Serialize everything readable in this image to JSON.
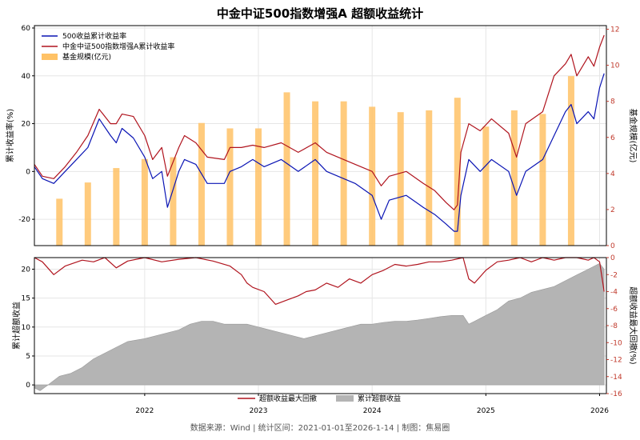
{
  "title": "中金中证500指数增强A 超额收益统计",
  "footer": "数据来源：Wind | 统计区间：2021-01-01至2026-1-14 | 制图：焦易圈",
  "colors": {
    "index_line": "#0a14b4",
    "fund_line": "#b0141e",
    "aum_bar": "#ffc266",
    "drawdown_line": "#b0141e",
    "excess_area": "#b4b4b4",
    "grid": "#e6e6e6",
    "right_axis": "#c0392b"
  },
  "chart_data": [
    {
      "type": "line",
      "ylabel": "累计收益率(%)",
      "y2label": "基金规模(亿元)",
      "ylim": [
        -31,
        61
      ],
      "y2lim": [
        0,
        12.2
      ],
      "yticks": [
        -20,
        0,
        20,
        40,
        60
      ],
      "y2ticks": [
        0,
        2,
        4,
        6,
        8,
        10,
        12
      ],
      "xlim": [
        2021.03,
        2026.06
      ],
      "legend_position": "top-left",
      "grid": true,
      "series": [
        {
          "name": "500收益累计收益率",
          "x": [
            2021.03,
            2021.1,
            2021.2,
            2021.3,
            2021.4,
            2021.5,
            2021.6,
            2021.7,
            2021.75,
            2021.8,
            2021.9,
            2022.0,
            2022.07,
            2022.15,
            2022.2,
            2022.3,
            2022.35,
            2022.45,
            2022.55,
            2022.7,
            2022.75,
            2022.85,
            2022.95,
            2023.05,
            2023.2,
            2023.35,
            2023.5,
            2023.6,
            2023.75,
            2023.85,
            2024.0,
            2024.08,
            2024.15,
            2024.3,
            2024.45,
            2024.55,
            2024.65,
            2024.72,
            2024.75,
            2024.78,
            2024.85,
            2024.95,
            2025.05,
            2025.2,
            2025.27,
            2025.35,
            2025.5,
            2025.6,
            2025.7,
            2025.75,
            2025.8,
            2025.9,
            2025.95,
            2026.0,
            2026.04
          ],
          "y": [
            2,
            -3,
            -5,
            0,
            5,
            10,
            22,
            15,
            12,
            18,
            14,
            6,
            -3,
            0,
            -15,
            0,
            5,
            3,
            -5,
            -5,
            0,
            2,
            5,
            2,
            5,
            0,
            5,
            0,
            -3,
            -5,
            -10,
            -20,
            -12,
            -10,
            -15,
            -18,
            -22,
            -25,
            -25,
            -10,
            5,
            0,
            5,
            0,
            -10,
            0,
            5,
            15,
            25,
            28,
            20,
            25,
            22,
            35,
            41
          ]
        },
        {
          "name": "中金中证500指数增强A累计收益率",
          "x": [
            2021.03,
            2021.1,
            2021.2,
            2021.3,
            2021.4,
            2021.5,
            2021.6,
            2021.7,
            2021.75,
            2021.8,
            2021.9,
            2022.0,
            2022.07,
            2022.15,
            2022.2,
            2022.3,
            2022.35,
            2022.45,
            2022.55,
            2022.7,
            2022.75,
            2022.85,
            2022.95,
            2023.05,
            2023.2,
            2023.35,
            2023.5,
            2023.6,
            2023.75,
            2023.85,
            2024.0,
            2024.08,
            2024.15,
            2024.3,
            2024.45,
            2024.55,
            2024.65,
            2024.72,
            2024.75,
            2024.78,
            2024.85,
            2024.95,
            2025.05,
            2025.2,
            2025.27,
            2025.35,
            2025.5,
            2025.6,
            2025.7,
            2025.75,
            2025.8,
            2025.9,
            2025.95,
            2026.0,
            2026.04
          ],
          "y": [
            3,
            -2,
            -3,
            2,
            8,
            15,
            26,
            20,
            20,
            24,
            23,
            15,
            5,
            10,
            -2,
            10,
            15,
            12,
            6,
            5,
            10,
            10,
            11,
            10,
            12,
            8,
            12,
            8,
            5,
            3,
            0,
            -6,
            -2,
            0,
            -5,
            -8,
            -13,
            -16,
            -14,
            8,
            20,
            17,
            22,
            16,
            6,
            20,
            25,
            40,
            45,
            49,
            40,
            48,
            44,
            52,
            57
          ]
        },
        {
          "name": "基金规模(亿元)",
          "type": "bar",
          "axis": "right",
          "x": [
            2021.25,
            2021.5,
            2021.75,
            2022.0,
            2022.25,
            2022.5,
            2022.75,
            2023.0,
            2023.25,
            2023.5,
            2023.75,
            2024.0,
            2024.25,
            2024.5,
            2024.75,
            2025.0,
            2025.25,
            2025.5,
            2025.75
          ],
          "y": [
            2.6,
            3.5,
            4.3,
            4.8,
            4.9,
            6.8,
            6.5,
            6.5,
            8.5,
            8.0,
            8.0,
            7.7,
            7.4,
            7.5,
            8.2,
            6.6,
            7.5,
            7.3,
            9.4
          ]
        }
      ]
    },
    {
      "type": "area",
      "ylabel": "累计超额收益",
      "y2label": "超额收益最大回撤(%)",
      "ylim": [
        -1.5,
        22
      ],
      "y2lim": [
        -16,
        0
      ],
      "yticks": [
        0,
        5,
        10,
        15,
        20
      ],
      "y2ticks": [
        0,
        -2,
        -4,
        -6,
        -8,
        -10,
        -12,
        -14,
        -16
      ],
      "xlim": [
        2021.03,
        2026.06
      ],
      "xticks": [
        2022,
        2023,
        2024,
        2025,
        2026
      ],
      "legend_position": "bottom-center",
      "grid": true,
      "series": [
        {
          "name": "超额收益最大回撤",
          "axis": "right",
          "x": [
            2021.03,
            2021.1,
            2021.2,
            2021.3,
            2021.45,
            2021.55,
            2021.65,
            2021.75,
            2021.85,
            2022.0,
            2022.15,
            2022.3,
            2022.45,
            2022.6,
            2022.75,
            2022.85,
            2022.9,
            2022.95,
            2023.05,
            2023.15,
            2023.25,
            2023.35,
            2023.42,
            2023.5,
            2023.6,
            2023.7,
            2023.8,
            2023.9,
            2024.0,
            2024.1,
            2024.2,
            2024.3,
            2024.4,
            2024.5,
            2024.6,
            2024.7,
            2024.8,
            2024.85,
            2024.9,
            2025.0,
            2025.1,
            2025.2,
            2025.3,
            2025.4,
            2025.5,
            2025.6,
            2025.7,
            2025.8,
            2025.9,
            2025.95,
            2026.0,
            2026.04
          ],
          "y": [
            0,
            -0.5,
            -2,
            -1,
            -0.3,
            -0.5,
            0,
            -1.2,
            -0.4,
            0,
            -0.5,
            -0.2,
            0,
            -0.4,
            -1,
            -2,
            -3,
            -3.5,
            -4,
            -5.5,
            -5,
            -4.5,
            -4,
            -3.8,
            -3,
            -3.5,
            -2.5,
            -3,
            -2,
            -1.5,
            -0.8,
            -1,
            -0.8,
            -0.5,
            -0.5,
            -0.3,
            0,
            -2.5,
            -3,
            -1.5,
            -0.5,
            -0.3,
            0,
            -0.5,
            0,
            -0.3,
            0,
            0,
            -0.3,
            0,
            -0.5,
            -4
          ]
        },
        {
          "name": "累计超额收益",
          "x": [
            2021.03,
            2021.08,
            2021.15,
            2021.25,
            2021.35,
            2021.45,
            2021.55,
            2021.65,
            2021.75,
            2021.85,
            2022.0,
            2022.1,
            2022.2,
            2022.3,
            2022.4,
            2022.5,
            2022.6,
            2022.7,
            2022.8,
            2022.9,
            2023.0,
            2023.1,
            2023.2,
            2023.3,
            2023.4,
            2023.5,
            2023.6,
            2023.7,
            2023.8,
            2023.9,
            2024.0,
            2024.1,
            2024.2,
            2024.3,
            2024.4,
            2024.5,
            2024.6,
            2024.7,
            2024.8,
            2024.85,
            2024.9,
            2025.0,
            2025.1,
            2025.2,
            2025.3,
            2025.4,
            2025.5,
            2025.6,
            2025.7,
            2025.8,
            2025.9,
            2025.95,
            2026.0,
            2026.04
          ],
          "y": [
            -0.5,
            -1,
            0,
            1.5,
            2,
            3,
            4.5,
            5.5,
            6.5,
            7.5,
            8,
            8.5,
            9,
            9.5,
            10.5,
            11,
            11,
            10.5,
            10.5,
            10.5,
            10,
            9.5,
            9,
            8.5,
            8,
            8.5,
            9,
            9.5,
            10,
            10.5,
            10.5,
            10.8,
            11,
            11,
            11.2,
            11.5,
            11.8,
            12,
            12,
            10.5,
            11,
            12,
            13,
            14.5,
            15,
            16,
            16.5,
            17,
            18,
            19,
            20,
            20.5,
            21,
            20
          ]
        }
      ]
    }
  ]
}
